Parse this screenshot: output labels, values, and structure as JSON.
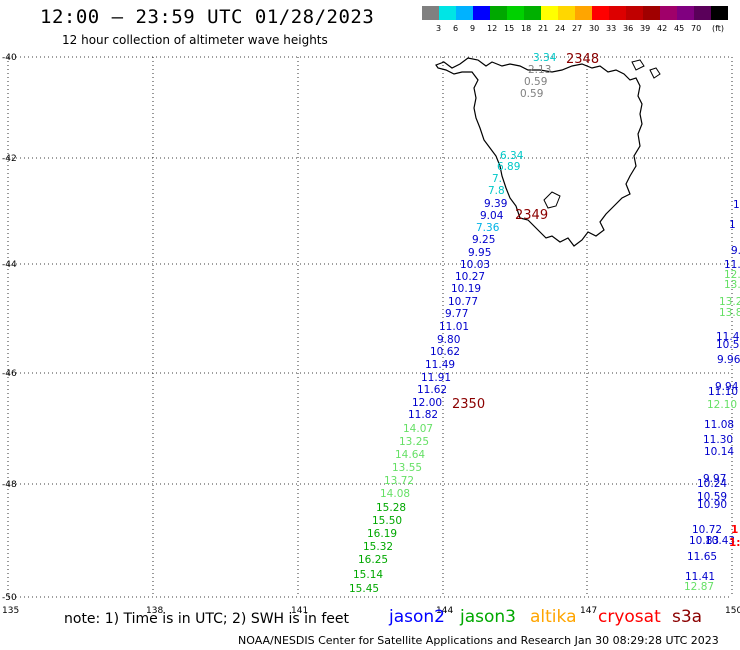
{
  "header": {
    "title": "12:00 – 23:59 UTC 01/28/2023",
    "subtitle": "12 hour collection of altimeter wave heights"
  },
  "legend": {
    "unit_label": "(ft)",
    "bins": [
      {
        "label": "",
        "color": "#808080"
      },
      {
        "label": "3",
        "color": "#00e5e5"
      },
      {
        "label": "6",
        "color": "#00b2ff"
      },
      {
        "label": "9",
        "color": "#0000ff"
      },
      {
        "label": "12",
        "color": "#00a800"
      },
      {
        "label": "15",
        "color": "#00d100"
      },
      {
        "label": "18",
        "color": "#00b000"
      },
      {
        "label": "21",
        "color": "#ffff00"
      },
      {
        "label": "24",
        "color": "#ffd700"
      },
      {
        "label": "27",
        "color": "#ffa500"
      },
      {
        "label": "30",
        "color": "#ff0000"
      },
      {
        "label": "33",
        "color": "#dd0000"
      },
      {
        "label": "36",
        "color": "#c00000"
      },
      {
        "label": "39",
        "color": "#a00000"
      },
      {
        "label": "42",
        "color": "#a0006a"
      },
      {
        "label": "45",
        "color": "#800080"
      },
      {
        "label": "70",
        "color": "#5a005a"
      },
      {
        "label": "",
        "color": "#000000"
      }
    ]
  },
  "axes": {
    "lat_labels": [
      "-40",
      "-42",
      "-44",
      "-46",
      "-48",
      "-50"
    ],
    "lon_labels": [
      "135",
      "138",
      "141",
      "144",
      "147",
      "150"
    ],
    "grid": "dotted"
  },
  "track_values": [
    {
      "text": "3.34",
      "color": "#00c8c8"
    },
    {
      "text": "2.13",
      "color": "#808080"
    },
    {
      "text": "0.59",
      "color": "#808080"
    },
    {
      "text": "0.59",
      "color": "#808080"
    },
    {
      "text": "6.34",
      "color": "#00c8c8"
    },
    {
      "text": "6.89",
      "color": "#00c8c8"
    },
    {
      "text": "7.",
      "color": "#00c8c8"
    },
    {
      "text": "7.8",
      "color": "#00c8c8"
    },
    {
      "text": "9.39",
      "color": "#0000cc"
    },
    {
      "text": "9.04",
      "color": "#0000cc"
    },
    {
      "text": "7.36",
      "color": "#00b2e5"
    },
    {
      "text": "9.25",
      "color": "#0000cc"
    },
    {
      "text": "9.95",
      "color": "#0000cc"
    },
    {
      "text": "10.03",
      "color": "#0000cc"
    },
    {
      "text": "10.27",
      "color": "#0000cc"
    },
    {
      "text": "10.19",
      "color": "#0000cc"
    },
    {
      "text": "10.77",
      "color": "#0000cc"
    },
    {
      "text": "9.77",
      "color": "#0000cc"
    },
    {
      "text": "11.01",
      "color": "#0000cc"
    },
    {
      "text": "9.80",
      "color": "#0000cc"
    },
    {
      "text": "10.62",
      "color": "#0000cc"
    },
    {
      "text": "11.49",
      "color": "#0000cc"
    },
    {
      "text": "11.91",
      "color": "#0000cc"
    },
    {
      "text": "11.62",
      "color": "#0000cc"
    },
    {
      "text": "12.00",
      "color": "#0000cc"
    },
    {
      "text": "11.82",
      "color": "#0000cc"
    },
    {
      "text": "14.07",
      "color": "#66e066"
    },
    {
      "text": "13.25",
      "color": "#66e066"
    },
    {
      "text": "14.64",
      "color": "#66e066"
    },
    {
      "text": "13.55",
      "color": "#66e066"
    },
    {
      "text": "13.72",
      "color": "#66e066"
    },
    {
      "text": "14.08",
      "color": "#66e066"
    },
    {
      "text": "15.28",
      "color": "#00a800"
    },
    {
      "text": "15.50",
      "color": "#00a800"
    },
    {
      "text": "16.19",
      "color": "#00a800"
    },
    {
      "text": "15.32",
      "color": "#00a800"
    },
    {
      "text": "16.25",
      "color": "#00a800"
    },
    {
      "text": "15.14",
      "color": "#00a800"
    },
    {
      "text": "15.45",
      "color": "#00a800"
    }
  ],
  "east_values": [
    {
      "text": "1",
      "color": "#0000cc"
    },
    {
      "text": "1",
      "color": "#0000cc"
    },
    {
      "text": "9.",
      "color": "#0000cc"
    },
    {
      "text": "11.",
      "color": "#0000cc"
    },
    {
      "text": "12.",
      "color": "#66e066"
    },
    {
      "text": "13.",
      "color": "#66e066"
    },
    {
      "text": "13.2",
      "color": "#66e066"
    },
    {
      "text": "13.8",
      "color": "#66e066"
    },
    {
      "text": "11.4",
      "color": "#0000cc"
    },
    {
      "text": "10.5",
      "color": "#0000cc"
    },
    {
      "text": "9.96",
      "color": "#0000cc"
    },
    {
      "text": "9.94",
      "color": "#0000cc"
    },
    {
      "text": "11.10",
      "color": "#0000cc"
    },
    {
      "text": "12.10",
      "color": "#66e066"
    },
    {
      "text": "11.08",
      "color": "#0000cc"
    },
    {
      "text": "11.30",
      "color": "#0000cc"
    },
    {
      "text": "10.14",
      "color": "#0000cc"
    },
    {
      "text": "9.97",
      "color": "#0000cc"
    },
    {
      "text": "10.24",
      "color": "#0000cc"
    },
    {
      "text": "10.59",
      "color": "#0000cc"
    },
    {
      "text": "10.90",
      "color": "#0000cc"
    },
    {
      "text": "10.72",
      "color": "#0000cc"
    },
    {
      "text": "10.83",
      "color": "#0000cc"
    },
    {
      "text": "10.43",
      "color": "#0000cc"
    },
    {
      "text": "11.65",
      "color": "#0000cc"
    },
    {
      "text": "11.41",
      "color": "#0000cc"
    },
    {
      "text": "12.87",
      "color": "#66e066"
    },
    {
      "text": "1",
      "color": "#ff0000"
    },
    {
      "text": "1:",
      "color": "#ff0000"
    }
  ],
  "time_labels": [
    "2348",
    "2349",
    "2350"
  ],
  "footer": {
    "note": "note:  1) Time is in UTC;  2) SWH is in feet",
    "satellites": [
      {
        "name": "jason2",
        "color": "#0000ff"
      },
      {
        "name": "jason3",
        "color": "#00a800"
      },
      {
        "name": "altika",
        "color": "#ffa500"
      },
      {
        "name": "cryosat",
        "color": "#ff0000"
      },
      {
        "name": "s3a",
        "color": "#8b0000"
      }
    ],
    "credit": "NOAA/NESDIS Center for Satellite Applications and Research    Jan 30 08:29:28 UTC 2023"
  }
}
